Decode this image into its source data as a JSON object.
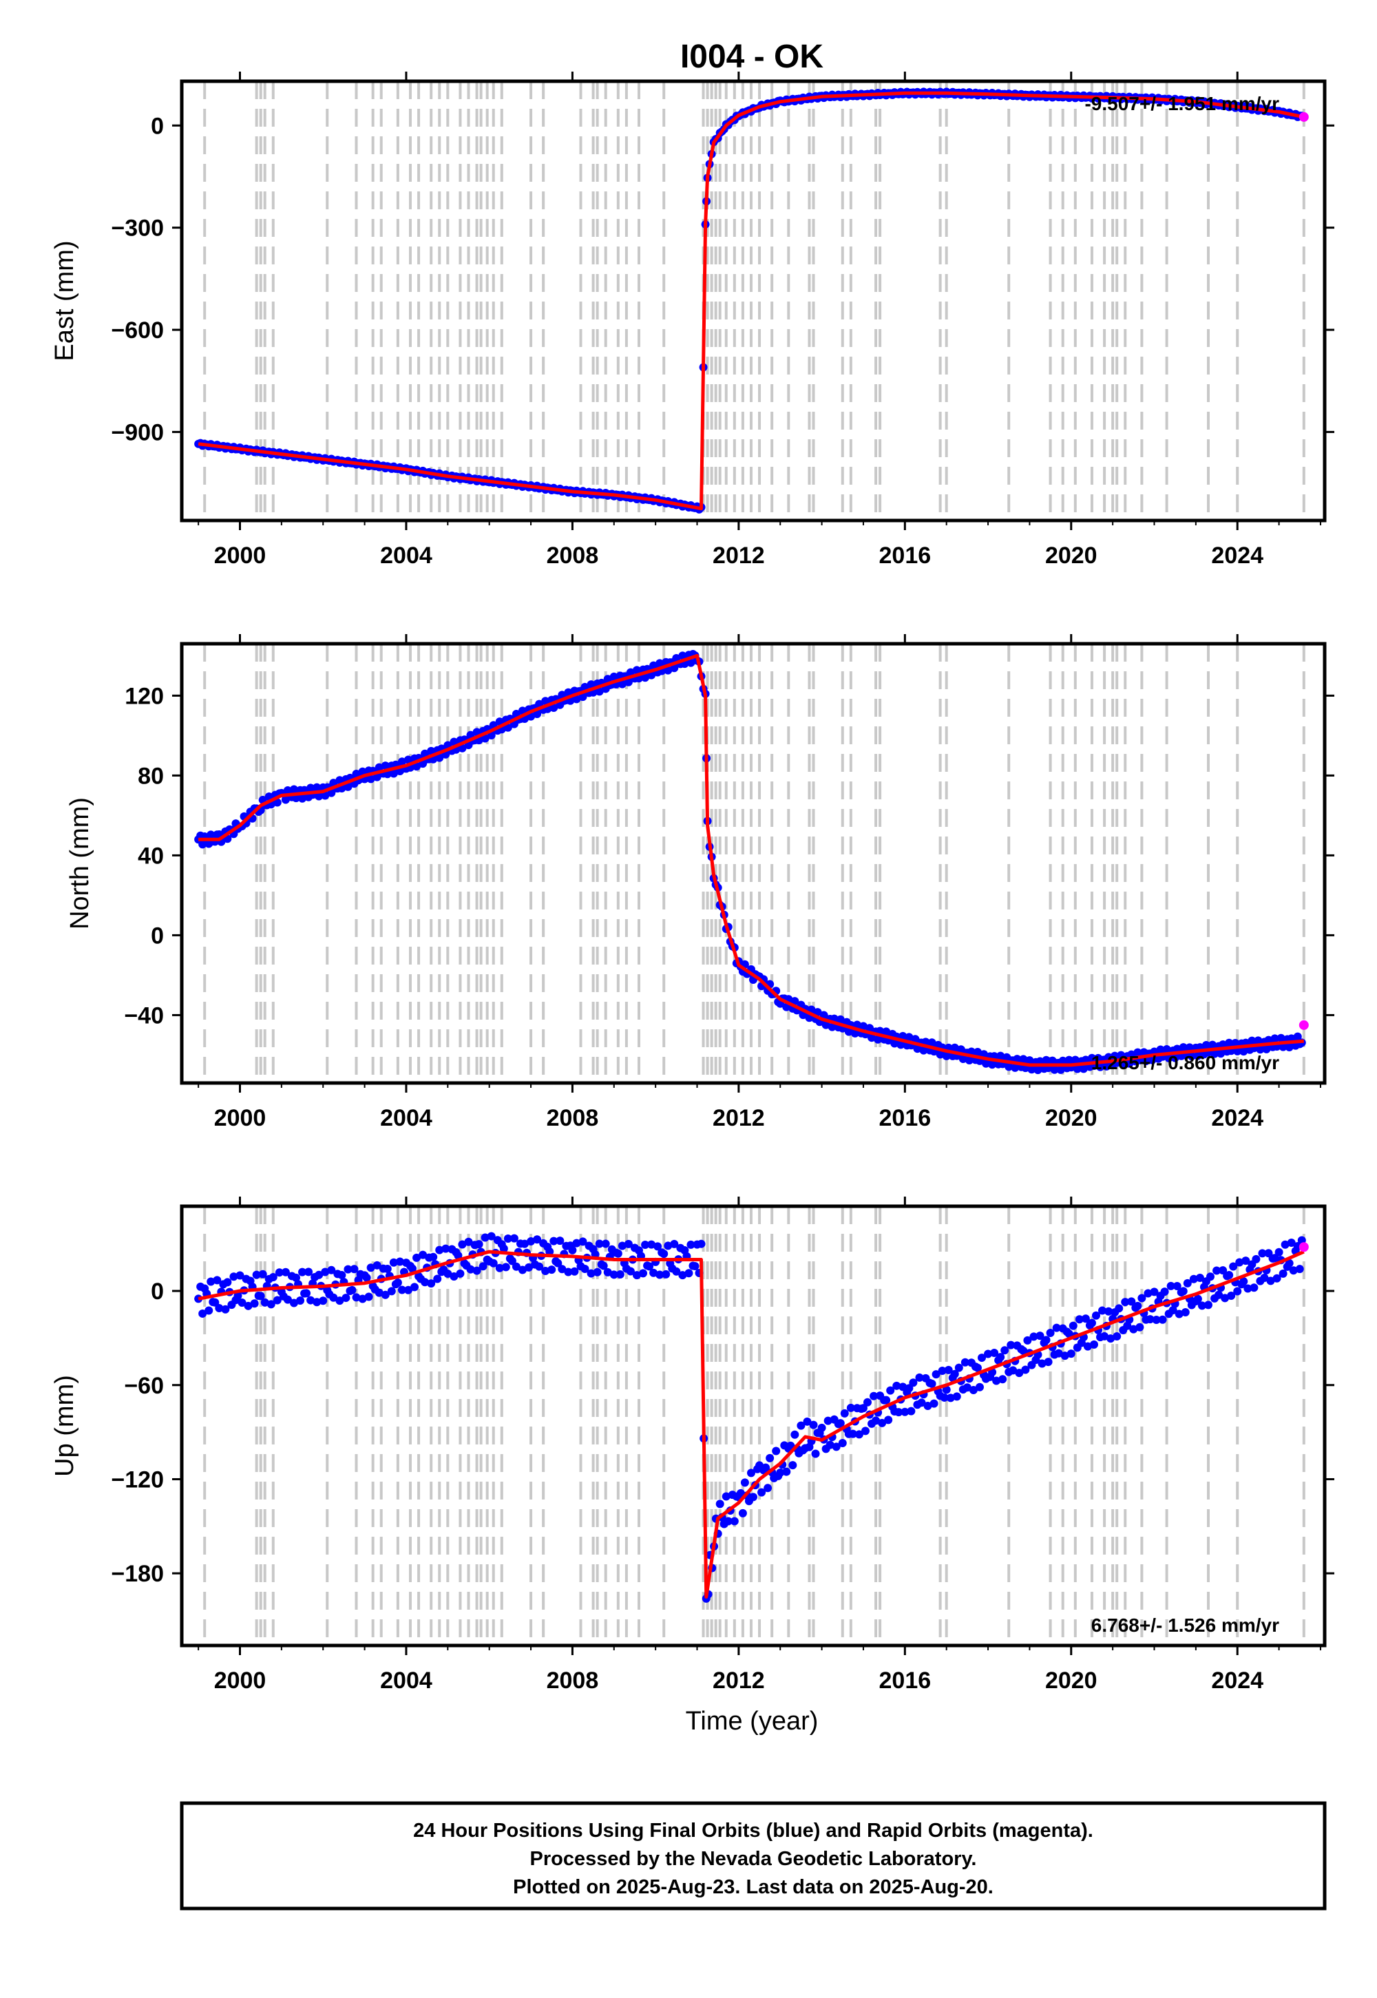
{
  "title": "I004 - OK",
  "xlabel": "Time (year)",
  "footer": [
    "24 Hour Positions Using Final Orbits (blue) and Rapid Orbits (magenta).",
    "Processed by the Nevada Geodetic Laboratory.",
    "Plotted on 2025-Aug-23. Last data on 2025-Aug-20."
  ],
  "colors": {
    "final_orbits": "#0000ff",
    "rapid_orbits": "#ff00ff",
    "model": "#ff0000",
    "event_lines": "#c8c8c8",
    "frame": "#000000"
  },
  "chart_data": [
    {
      "type": "scatter",
      "ylabel": "East (mm)",
      "xlim": [
        1998.6,
        2026.1
      ],
      "ylim": [
        -1160,
        130
      ],
      "xticks": [
        "2000",
        "2004",
        "2008",
        "2012",
        "2016",
        "2020",
        "2024"
      ],
      "yticks": [
        "0",
        "−300",
        "−600",
        "−900"
      ],
      "ytick_values": [
        0,
        -300,
        -600,
        -900
      ],
      "rate_label": "-9.507+/- 1.951 mm/yr",
      "series": [
        {
          "name": "Final Orbits",
          "x": [
            1999.0,
            2000.0,
            2001.0,
            2002.0,
            2003.0,
            2004.0,
            2005.0,
            2006.0,
            2007.0,
            2008.0,
            2009.0,
            2010.0,
            2011.1,
            2011.2,
            2011.25,
            2011.4,
            2011.7,
            2012.0,
            2012.5,
            2013.0,
            2014.0,
            2015.0,
            2016.0,
            2017.0,
            2018.0,
            2019.0,
            2020.0,
            2021.0,
            2022.0,
            2023.0,
            2024.0,
            2025.0,
            2025.6
          ],
          "y": [
            -935,
            -950,
            -965,
            -980,
            -995,
            -1010,
            -1030,
            -1045,
            -1060,
            -1075,
            -1085,
            -1100,
            -1125,
            -290,
            -150,
            -50,
            0,
            30,
            55,
            70,
            85,
            90,
            95,
            95,
            92,
            88,
            85,
            82,
            78,
            70,
            55,
            40,
            25
          ]
        },
        {
          "name": "Rapid Orbits",
          "x": [
            2025.6
          ],
          "y": [
            25
          ]
        }
      ]
    },
    {
      "type": "scatter",
      "ylabel": "North (mm)",
      "xlim": [
        1998.6,
        2026.1
      ],
      "ylim": [
        -74,
        146
      ],
      "xticks": [
        "2000",
        "2004",
        "2008",
        "2012",
        "2016",
        "2020",
        "2024"
      ],
      "yticks": [
        "120",
        "80",
        "40",
        "0",
        "−40"
      ],
      "ytick_values": [
        120,
        80,
        40,
        0,
        -40
      ],
      "rate_label": "1.265+/- 0.860 mm/yr",
      "series": [
        {
          "name": "Final Orbits",
          "x": [
            1999.0,
            1999.5,
            2000.0,
            2000.5,
            2001.0,
            2002.0,
            2003.0,
            2004.0,
            2005.0,
            2006.0,
            2007.0,
            2008.0,
            2009.0,
            2010.0,
            2011.0,
            2011.2,
            2011.25,
            2011.4,
            2011.7,
            2012.0,
            2012.5,
            2013.0,
            2014.0,
            2015.0,
            2016.0,
            2017.0,
            2018.0,
            2019.0,
            2020.0,
            2021.0,
            2022.0,
            2023.0,
            2024.0,
            2025.0,
            2025.6
          ],
          "y": [
            48,
            48,
            55,
            65,
            70,
            72,
            80,
            85,
            93,
            102,
            112,
            120,
            127,
            133,
            140,
            120,
            55,
            30,
            5,
            -15,
            -22,
            -32,
            -42,
            -48,
            -53,
            -58,
            -62,
            -65,
            -65,
            -63,
            -60,
            -58,
            -56,
            -54,
            -53
          ]
        },
        {
          "name": "Rapid Orbits",
          "x": [
            2025.6
          ],
          "y": [
            -45
          ]
        }
      ]
    },
    {
      "type": "scatter",
      "ylabel": "Up (mm)",
      "xlim": [
        1998.6,
        2026.1
      ],
      "ylim": [
        -226,
        54
      ],
      "xticks": [
        "2000",
        "2004",
        "2008",
        "2012",
        "2016",
        "2020",
        "2024"
      ],
      "yticks": [
        "0",
        "−60",
        "−120",
        "−180"
      ],
      "ytick_values": [
        0,
        -60,
        -120,
        -180
      ],
      "rate_label": "6.768+/- 1.526 mm/yr",
      "series": [
        {
          "name": "Final Orbits",
          "x": [
            1999.0,
            2000.0,
            2001.0,
            2002.0,
            2003.0,
            2004.0,
            2005.0,
            2006.0,
            2007.0,
            2008.0,
            2009.0,
            2010.0,
            2011.1,
            2011.22,
            2011.5,
            2012.0,
            2012.5,
            2013.0,
            2013.6,
            2014.0,
            2015.0,
            2016.0,
            2017.0,
            2018.0,
            2019.0,
            2020.0,
            2021.0,
            2022.0,
            2023.0,
            2024.0,
            2025.0,
            2025.6
          ],
          "y": [
            -5,
            0,
            2,
            3,
            5,
            10,
            18,
            25,
            23,
            22,
            20,
            20,
            20,
            -195,
            -145,
            -135,
            -120,
            -110,
            -93,
            -95,
            -80,
            -68,
            -60,
            -50,
            -40,
            -30,
            -20,
            -10,
            -2,
            8,
            18,
            25
          ]
        },
        {
          "name": "Rapid Orbits",
          "x": [
            2025.6
          ],
          "y": [
            28
          ]
        }
      ]
    }
  ],
  "event_years": [
    1999.15,
    2000.4,
    2000.5,
    2000.6,
    2000.8,
    2002.1,
    2002.8,
    2003.2,
    2003.4,
    2003.8,
    2004.1,
    2004.3,
    2004.6,
    2004.8,
    2005.0,
    2005.3,
    2005.5,
    2005.7,
    2005.8,
    2005.95,
    2006.1,
    2006.3,
    2007.0,
    2007.3,
    2008.2,
    2008.5,
    2008.6,
    2008.8,
    2009.1,
    2009.3,
    2009.6,
    2010.2,
    2011.15,
    2011.25,
    2011.35,
    2011.45,
    2011.55,
    2011.7,
    2011.9,
    2012.1,
    2012.3,
    2012.5,
    2012.8,
    2013.2,
    2013.7,
    2013.8,
    2014.5,
    2014.7,
    2015.3,
    2015.4,
    2016.85,
    2017.0,
    2018.5,
    2019.5,
    2019.8,
    2020.1,
    2020.5,
    2020.8,
    2021.0,
    2021.1,
    2021.3,
    2021.7,
    2022.3,
    2023.3,
    2024.0,
    2025.6
  ]
}
